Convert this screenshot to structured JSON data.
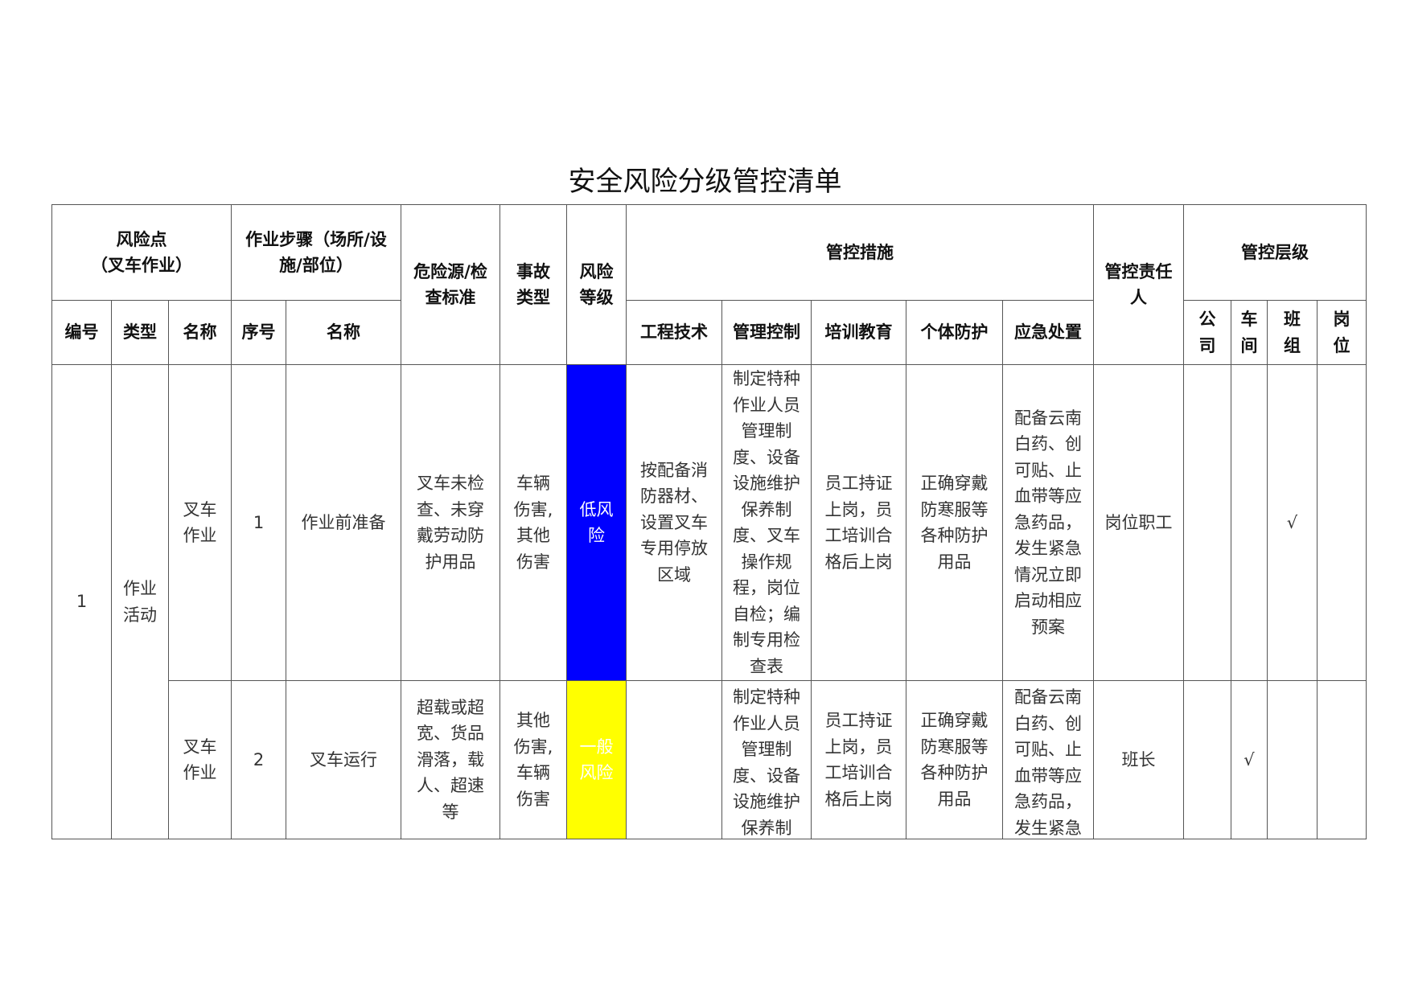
{
  "title": "安全风险分级管控清单",
  "header": {
    "risk_point": "风险点",
    "risk_point_sub": "（叉车作业）",
    "steps": "作业步骤（场所/设施/部位）",
    "hazard": "危险源/检查标准",
    "accident_type": "事故类型",
    "risk_level": "风险等级",
    "measures": "管控措施",
    "responsible": "管控责任人",
    "control_level": "管控层级",
    "sub": {
      "code": "编号",
      "type": "类型",
      "name": "名称",
      "seq": "序号",
      "step_name": "名称",
      "engineering": "工程技术",
      "management": "管理控制",
      "training": "培训教育",
      "ppe": "个体防护",
      "emergency": "应急处置",
      "company": "公司",
      "workshop": "车间",
      "team": "班组",
      "post": "岗位"
    }
  },
  "group": {
    "code": "1",
    "type": "作业活动"
  },
  "rows": [
    {
      "name": "叉车作业",
      "seq": "1",
      "step_name": "作业前准备",
      "hazard": "叉车未检查、未穿戴劳动防护用品",
      "accident_type": "车辆伤害,其他伤害",
      "risk_level": "低风险",
      "risk_color": "#0000ff",
      "engineering": "按配备消防器材、设置叉车专用停放区域",
      "management": "制定特种作业人员管理制度、设备设施维护保养制度、叉车操作规程，岗位自检；编制专用检查表",
      "training": "员工持证上岗，员工培训合格后上岗",
      "ppe": "正确穿戴防寒服等各种防护用品",
      "emergency": "配备云南白药、创可贴、止血带等应急药品，发生紧急情况立即启动相应预案",
      "responsible": "岗位职工",
      "company": "",
      "workshop": "",
      "team": "√",
      "post": ""
    },
    {
      "name": "叉车作业",
      "seq": "2",
      "step_name": "叉车运行",
      "hazard": "超载或超宽、货品滑落，载人、超速等",
      "accident_type": "其他伤害,车辆伤害",
      "risk_level": "一般风险",
      "risk_color": "#ffff00",
      "engineering": "",
      "management": "制定特种作业人员管理制度、设备设施维护保养制",
      "training": "员工持证上岗，员工培训合格后上岗",
      "ppe": "正确穿戴防寒服等各种防护用品",
      "emergency": "配备云南白药、创可贴、止血带等应急药品，发生紧急",
      "responsible": "班长",
      "company": "",
      "workshop": "√",
      "team": "",
      "post": ""
    }
  ]
}
